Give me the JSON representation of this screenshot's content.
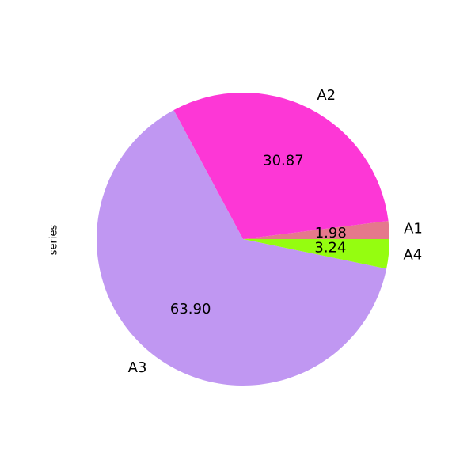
{
  "chart_data": {
    "type": "pie",
    "title": "",
    "ylabel": "series",
    "categories": [
      "A1",
      "A2",
      "A3",
      "A4"
    ],
    "values": [
      1.98,
      30.87,
      63.9,
      3.24
    ],
    "value_labels": [
      "1.98",
      "30.87",
      "63.90",
      "3.24"
    ],
    "colors": [
      "#e5788c",
      "#fd37d6",
      "#c097f2",
      "#95fd10"
    ],
    "start_angle_deg": 0,
    "direction": "counterclockwise"
  }
}
